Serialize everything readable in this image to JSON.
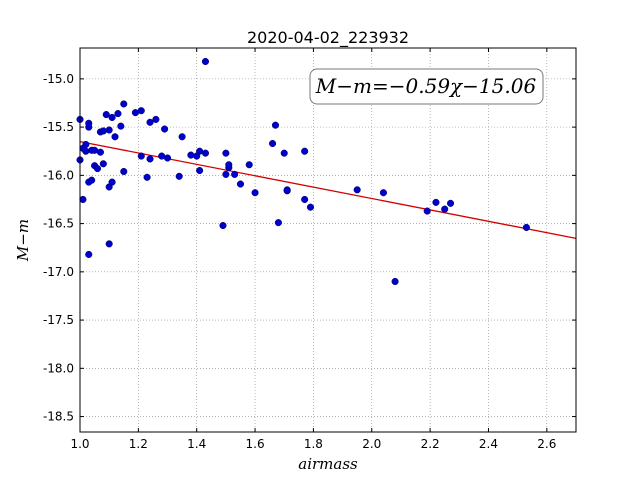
{
  "chart_data": {
    "type": "scatter",
    "title": "2020-04-02_223932",
    "xlabel": "airmass",
    "ylabel": "M−m",
    "xlim": [
      1.0,
      2.7
    ],
    "ylim": [
      -18.66,
      -14.68
    ],
    "x_ticks": [
      "1.0",
      "1.2",
      "1.4",
      "1.6",
      "1.8",
      "2.0",
      "2.2",
      "2.4",
      "2.6"
    ],
    "y_ticks": [
      "-15.0",
      "-15.5",
      "-16.0",
      "-16.5",
      "-17.0",
      "-17.5",
      "-18.0",
      "-18.5"
    ],
    "grid": true,
    "annotation": "M−m=−0.59χ−15.06",
    "fit_line": {
      "slope": -0.59,
      "intercept": -15.06,
      "color": "#d40000"
    },
    "point_color": "#0000cc",
    "points": [
      [
        1.0,
        -15.42
      ],
      [
        1.0,
        -15.84
      ],
      [
        1.01,
        -16.25
      ],
      [
        1.01,
        -15.72
      ],
      [
        1.02,
        -15.75
      ],
      [
        1.02,
        -15.68
      ],
      [
        1.03,
        -15.46
      ],
      [
        1.03,
        -15.5
      ],
      [
        1.03,
        -16.82
      ],
      [
        1.03,
        -16.07
      ],
      [
        1.04,
        -15.74
      ],
      [
        1.04,
        -16.05
      ],
      [
        1.05,
        -15.9
      ],
      [
        1.05,
        -15.74
      ],
      [
        1.06,
        -15.93
      ],
      [
        1.07,
        -15.76
      ],
      [
        1.07,
        -15.55
      ],
      [
        1.08,
        -15.88
      ],
      [
        1.08,
        -15.54
      ],
      [
        1.09,
        -15.37
      ],
      [
        1.1,
        -16.12
      ],
      [
        1.1,
        -15.53
      ],
      [
        1.1,
        -16.71
      ],
      [
        1.11,
        -15.4
      ],
      [
        1.11,
        -16.07
      ],
      [
        1.12,
        -15.6
      ],
      [
        1.13,
        -15.36
      ],
      [
        1.14,
        -15.49
      ],
      [
        1.15,
        -15.26
      ],
      [
        1.15,
        -15.96
      ],
      [
        1.19,
        -15.35
      ],
      [
        1.21,
        -15.33
      ],
      [
        1.21,
        -15.8
      ],
      [
        1.23,
        -16.02
      ],
      [
        1.24,
        -15.83
      ],
      [
        1.24,
        -15.45
      ],
      [
        1.26,
        -15.42
      ],
      [
        1.28,
        -15.8
      ],
      [
        1.29,
        -15.52
      ],
      [
        1.3,
        -15.82
      ],
      [
        1.34,
        -16.01
      ],
      [
        1.35,
        -15.6
      ],
      [
        1.38,
        -15.79
      ],
      [
        1.4,
        -15.8
      ],
      [
        1.41,
        -15.75
      ],
      [
        1.41,
        -15.95
      ],
      [
        1.43,
        -15.77
      ],
      [
        1.43,
        -14.82
      ],
      [
        1.49,
        -16.52
      ],
      [
        1.5,
        -15.77
      ],
      [
        1.5,
        -15.99
      ],
      [
        1.51,
        -15.92
      ],
      [
        1.51,
        -15.89
      ],
      [
        1.53,
        -15.99
      ],
      [
        1.55,
        -16.09
      ],
      [
        1.58,
        -15.89
      ],
      [
        1.6,
        -16.18
      ],
      [
        1.66,
        -15.67
      ],
      [
        1.67,
        -15.48
      ],
      [
        1.68,
        -16.49
      ],
      [
        1.7,
        -15.77
      ],
      [
        1.71,
        -16.16
      ],
      [
        1.71,
        -16.15
      ],
      [
        1.77,
        -15.75
      ],
      [
        1.77,
        -16.25
      ],
      [
        1.79,
        -16.33
      ],
      [
        1.95,
        -16.15
      ],
      [
        2.04,
        -16.18
      ],
      [
        2.08,
        -17.1
      ],
      [
        2.19,
        -16.37
      ],
      [
        2.22,
        -16.28
      ],
      [
        2.25,
        -16.35
      ],
      [
        2.27,
        -16.29
      ],
      [
        2.53,
        -16.54
      ]
    ]
  }
}
